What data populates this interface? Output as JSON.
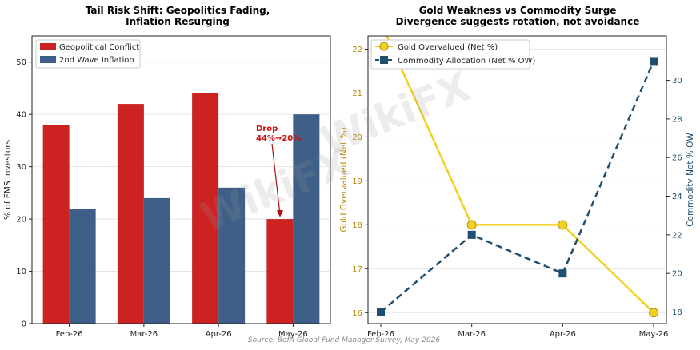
{
  "source_note": "Source: BofA Global Fund Manager Survey, May 2026",
  "watermarks": [
    "WikiFX",
    "WikiFX"
  ],
  "colors": {
    "geo": "#cc2222",
    "infl": "#3e5f87",
    "gold": "#f0d020",
    "gold_axis": "#b8860b",
    "commodity": "#1f4e6e",
    "anno": "#cc1010"
  },
  "chart_data": [
    {
      "type": "bar",
      "title_lines": [
        "Tail Risk Shift: Geopolitics Fading,",
        "Inflation Resurging"
      ],
      "categories": [
        "Feb-26",
        "Mar-26",
        "Apr-26",
        "May-26"
      ],
      "series": [
        {
          "name": "Geopolitical Conflict",
          "values": [
            38,
            42,
            44,
            20
          ]
        },
        {
          "name": "2nd Wave Inflation",
          "values": [
            22,
            24,
            26,
            40
          ]
        }
      ],
      "xlabel": "",
      "ylabel": "% of FMS Investors",
      "ylim": [
        0,
        55
      ],
      "yticks": [
        0,
        10,
        20,
        30,
        40,
        50
      ],
      "grid": true,
      "legend": "top-left",
      "annotation": {
        "lines": [
          "Drop",
          "44%→20%"
        ],
        "category": "May-26",
        "series": "Geopolitical Conflict",
        "value": 20
      }
    },
    {
      "type": "line",
      "title_lines": [
        "Gold Weakness vs Commodity Surge",
        "Divergence suggests rotation, not avoidance"
      ],
      "categories": [
        "Feb-26",
        "Mar-26",
        "Apr-26",
        "May-26"
      ],
      "series": [
        {
          "name": "Gold Overvalued (Net %)",
          "axis": "left",
          "style": "solid",
          "marker": "circle",
          "values": [
            22.6,
            18,
            18,
            16
          ]
        },
        {
          "name": "Commodity Allocation (Net % OW)",
          "axis": "right",
          "style": "dashed",
          "marker": "square",
          "values": [
            18,
            22,
            20,
            31
          ]
        }
      ],
      "ylabel_left": "Gold Overvalued (Net %)",
      "ylabel_right": "Commodity Net % OW",
      "ylim_left": [
        15.75,
        22.3
      ],
      "yticks_left": [
        16,
        17,
        18,
        19,
        20,
        21,
        22
      ],
      "ylim_right": [
        17.4,
        32.3
      ],
      "yticks_right": [
        18,
        20,
        22,
        24,
        26,
        28,
        30
      ],
      "grid": true,
      "legend": "top-left"
    }
  ]
}
